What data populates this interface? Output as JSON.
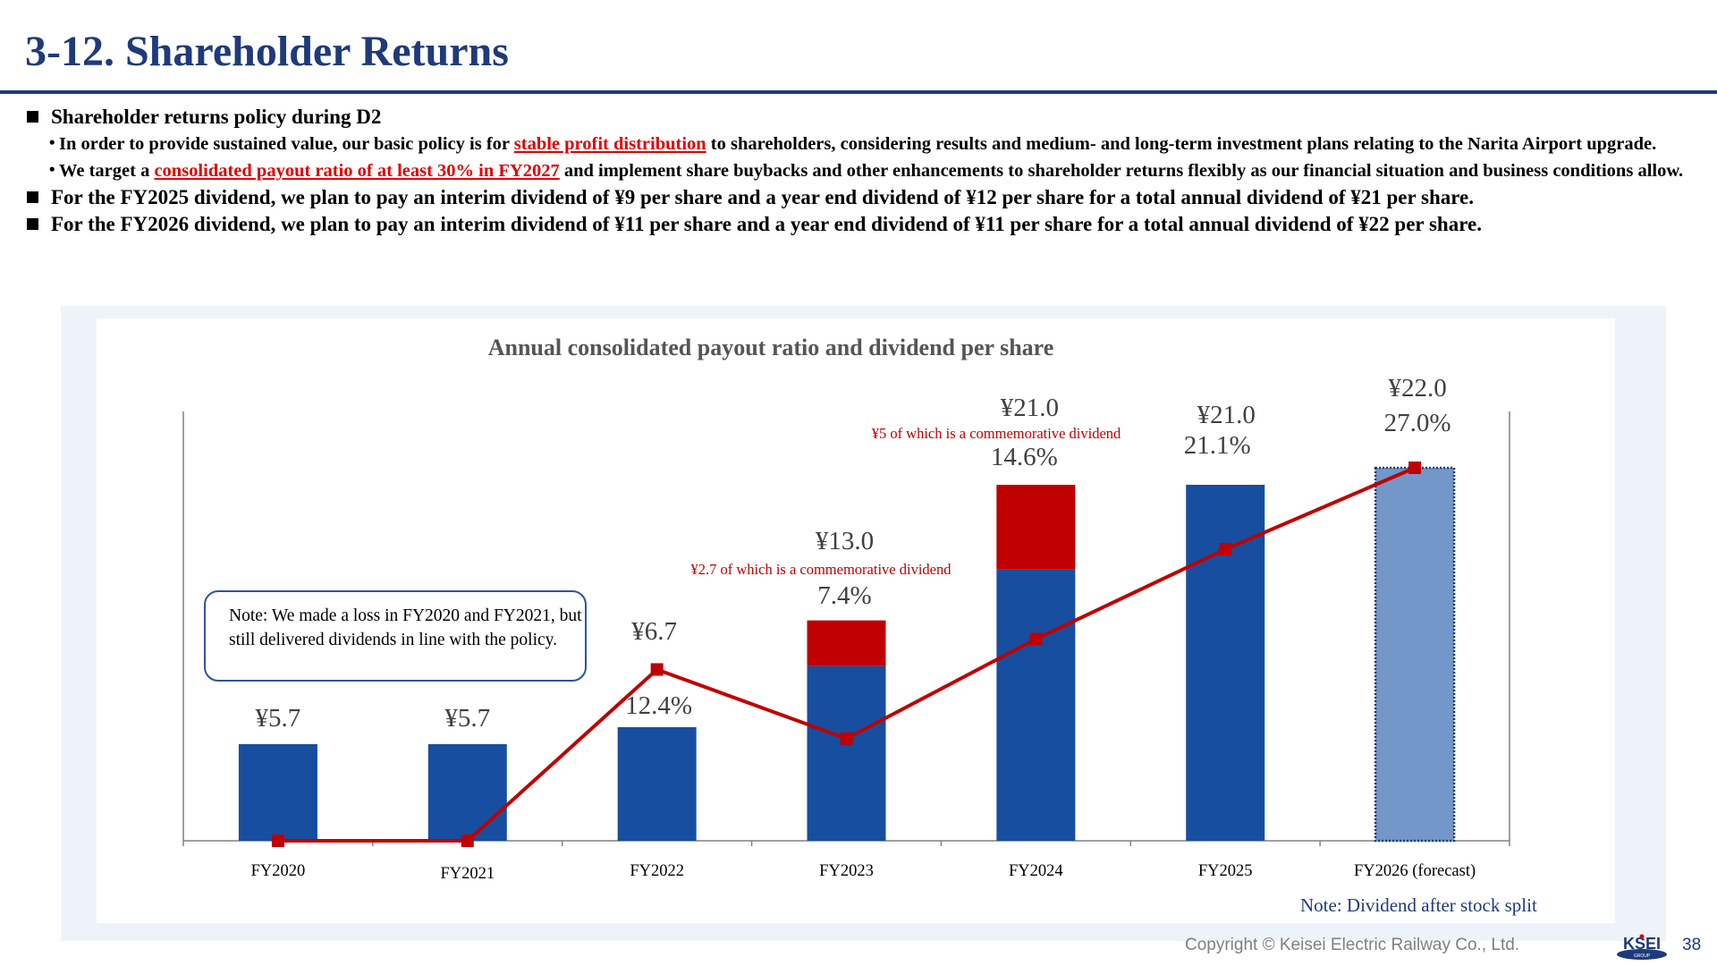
{
  "page": {
    "title": "3-12. Shareholder Returns",
    "page_number": "38",
    "copyright": "Copyright ©  Keisei Electric Railway Co., Ltd.",
    "logo_text": "KSEI",
    "logo_subtext": "GROUP"
  },
  "policy": {
    "heading": "Shareholder returns policy during D2",
    "points": [
      {
        "before": "In order to provide sustained value, our basic policy is for ",
        "highlight": "stable profit distribution",
        "after": " to shareholders, considering results and medium- and long-term investment plans relating to the Narita Airport upgrade."
      },
      {
        "before": "We target a ",
        "highlight": "consolidated payout ratio of at least 30% in FY2027",
        "after": " and implement share buybacks and other enhancements to shareholder returns flexibly as our financial situation and business conditions allow."
      }
    ],
    "fy2025": "For the FY2025 dividend, we plan to pay an interim dividend of ¥9 per share and a year end dividend of ¥12 per share for a total annual dividend of ¥21 per share.",
    "fy2026": "For the FY2026 dividend, we plan to pay an interim dividend of ¥11 per share and a year end dividend of ¥11 per share for a total annual dividend of ¥22 per share."
  },
  "note_box": "Note: We made a loss in FY2020 and FY2021, but still delivered dividends in line with the policy.",
  "footnote": "Note: Dividend after stock split",
  "colors": {
    "accent": "#1f3a7a",
    "bar_regular": "#174ea0",
    "bar_commemorative": "#c00000",
    "bar_forecast": "#7397c8",
    "line": "#c00000",
    "highlight_text": "#e00000"
  },
  "chart_data": {
    "type": "bar",
    "title": "Annual consolidated payout ratio and dividend per share",
    "categories": [
      "FY2020",
      "FY2021",
      "FY2022",
      "FY2023",
      "FY2024",
      "FY2025",
      "FY2026 (forecast)"
    ],
    "series": [
      {
        "values": [
          5.7,
          5.7,
          6.7,
          10.3,
          16.0,
          21.0,
          22.0
        ]
      },
      {
        "values": [
          0,
          0,
          0,
          2.7,
          5.0,
          0,
          0
        ]
      },
      {
        "type": "line",
        "values": [
          0,
          0,
          12.4,
          7.4,
          14.6,
          21.1,
          27.0
        ]
      }
    ],
    "dividend_labels": [
      "¥5.7",
      "¥5.7",
      "¥6.7",
      "¥13.0",
      "¥21.0",
      "¥21.0",
      "¥22.0"
    ],
    "payout_labels": [
      "",
      "",
      "12.4%",
      "7.4%",
      "14.6%",
      "21.1%",
      "27.0%"
    ],
    "annotations": [
      {
        "category": "FY2023",
        "text": "¥2.7 of which is a commemorative dividend"
      },
      {
        "category": "FY2024",
        "text": "¥5 of which is a commemorative dividend"
      }
    ],
    "forecast_index": 6,
    "ylim_dividend": [
      0,
      24
    ],
    "ylim_payout": [
      0,
      30
    ],
    "grid": false,
    "legend": "none"
  }
}
